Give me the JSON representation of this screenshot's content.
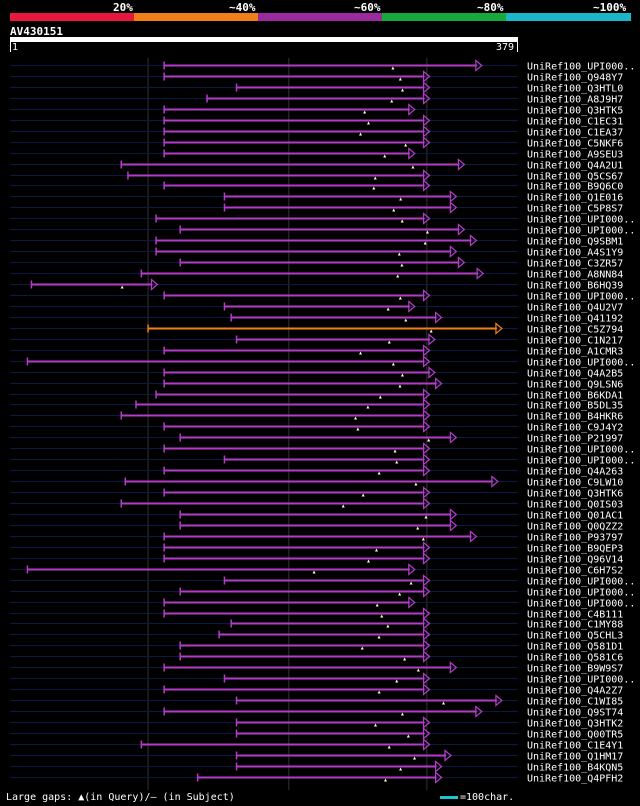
{
  "legend": {
    "labels": [
      "20%",
      "~40%",
      "~60%",
      "~80%",
      "~100%"
    ],
    "colors": [
      "#e8173c",
      "#f07f1a",
      "#9b2a9e",
      "#19a93a",
      "#1cb7c6"
    ]
  },
  "query": {
    "id": "AV430151",
    "start": "1",
    "end": "379",
    "length": 379
  },
  "colors": {
    "hit": "#b43cc8",
    "best_hit": "#f07f1a",
    "gap": "#ffffcc",
    "bg_line": "#0a1a44"
  },
  "hits": [
    {
      "label": "UniRef100_UPI000..",
      "start": 115,
      "end": 352
    },
    {
      "label": "UniRef100_Q948Y7",
      "start": 115,
      "end": 313
    },
    {
      "label": "UniRef100_Q3HTL0",
      "start": 169,
      "end": 313
    },
    {
      "label": "UniRef100_A8J9H7",
      "start": 147,
      "end": 313
    },
    {
      "label": "UniRef100_Q3HTK5",
      "start": 115,
      "end": 302
    },
    {
      "label": "UniRef100_C1EC31",
      "start": 115,
      "end": 313
    },
    {
      "label": "UniRef100_C1EA37",
      "start": 115,
      "end": 313
    },
    {
      "label": "UniRef100_C5NKF6",
      "start": 115,
      "end": 313
    },
    {
      "label": "UniRef100_A9SEU3",
      "start": 115,
      "end": 302
    },
    {
      "label": "UniRef100_Q4A2U1",
      "start": 83,
      "end": 339
    },
    {
      "label": "UniRef100_Q5CS67",
      "start": 88,
      "end": 313
    },
    {
      "label": "UniRef100_B9Q6C0",
      "start": 115,
      "end": 313
    },
    {
      "label": "UniRef100_Q1E016",
      "start": 160,
      "end": 333
    },
    {
      "label": "UniRef100_C5P8S7",
      "start": 160,
      "end": 333
    },
    {
      "label": "UniRef100_UPI000..",
      "start": 109,
      "end": 313
    },
    {
      "label": "UniRef100_UPI000..",
      "start": 127,
      "end": 339
    },
    {
      "label": "UniRef100_Q9SBM1",
      "start": 109,
      "end": 348
    },
    {
      "label": "UniRef100_A4S1Y9",
      "start": 109,
      "end": 333
    },
    {
      "label": "UniRef100_C3ZR57",
      "start": 127,
      "end": 339
    },
    {
      "label": "UniRef100_A8NN84",
      "start": 98,
      "end": 353
    },
    {
      "label": "UniRef100_B6HQ39",
      "start": 16,
      "end": 110
    },
    {
      "label": "UniRef100_UPI000..",
      "start": 115,
      "end": 313
    },
    {
      "label": "UniRef100_Q4U2V7",
      "start": 160,
      "end": 302
    },
    {
      "label": "UniRef100_Q41192",
      "start": 165,
      "end": 322
    },
    {
      "label": "UniRef100_C5Z794",
      "start": 103,
      "end": 367,
      "best": true
    },
    {
      "label": "UniRef100_C1N217",
      "start": 169,
      "end": 317
    },
    {
      "label": "UniRef100_A1CMR3",
      "start": 115,
      "end": 313
    },
    {
      "label": "UniRef100_UPI000..",
      "start": 13,
      "end": 313
    },
    {
      "label": "UniRef100_Q4A2B5",
      "start": 115,
      "end": 317
    },
    {
      "label": "UniRef100_Q9LSN6",
      "start": 115,
      "end": 322
    },
    {
      "label": "UniRef100_B6KDA1",
      "start": 109,
      "end": 313
    },
    {
      "label": "UniRef100_B5DL35",
      "start": 94,
      "end": 313
    },
    {
      "label": "UniRef100_B4HKR6",
      "start": 83,
      "end": 313
    },
    {
      "label": "UniRef100_C9J4Y2",
      "start": 115,
      "end": 313
    },
    {
      "label": "UniRef100_P21997",
      "start": 127,
      "end": 333
    },
    {
      "label": "UniRef100_UPI000..",
      "start": 115,
      "end": 313
    },
    {
      "label": "UniRef100_UPI000..",
      "start": 160,
      "end": 313
    },
    {
      "label": "UniRef100_Q4A263",
      "start": 115,
      "end": 313
    },
    {
      "label": "UniRef100_C9LW10",
      "start": 86,
      "end": 364
    },
    {
      "label": "UniRef100_Q3HTK6",
      "start": 115,
      "end": 313
    },
    {
      "label": "UniRef100_Q0IS03",
      "start": 83,
      "end": 313
    },
    {
      "label": "UniRef100_Q01AC1",
      "start": 127,
      "end": 333
    },
    {
      "label": "UniRef100_Q0QZZ2",
      "start": 127,
      "end": 333
    },
    {
      "label": "UniRef100_P93797",
      "start": 115,
      "end": 348
    },
    {
      "label": "UniRef100_B9QEP3",
      "start": 115,
      "end": 313
    },
    {
      "label": "UniRef100_Q96V14",
      "start": 115,
      "end": 313
    },
    {
      "label": "UniRef100_C6H7S2",
      "start": 13,
      "end": 302
    },
    {
      "label": "UniRef100_UPI000..",
      "start": 160,
      "end": 313
    },
    {
      "label": "UniRef100_UPI000..",
      "start": 127,
      "end": 313
    },
    {
      "label": "UniRef100_UPI000..",
      "start": 115,
      "end": 302
    },
    {
      "label": "UniRef100_C4B111",
      "start": 115,
      "end": 313
    },
    {
      "label": "UniRef100_C1MY88",
      "start": 165,
      "end": 313
    },
    {
      "label": "UniRef100_Q5CHL3",
      "start": 156,
      "end": 313
    },
    {
      "label": "UniRef100_Q581D1",
      "start": 127,
      "end": 313
    },
    {
      "label": "UniRef100_Q581C6",
      "start": 127,
      "end": 313
    },
    {
      "label": "UniRef100_B9W9S7",
      "start": 115,
      "end": 333
    },
    {
      "label": "UniRef100_UPI000..",
      "start": 160,
      "end": 313
    },
    {
      "label": "UniRef100_Q4A2Z7",
      "start": 115,
      "end": 313
    },
    {
      "label": "UniRef100_C1WI85",
      "start": 169,
      "end": 367
    },
    {
      "label": "UniRef100_Q9ST74",
      "start": 115,
      "end": 352
    },
    {
      "label": "UniRef100_Q3HTK2",
      "start": 169,
      "end": 313
    },
    {
      "label": "UniRef100_Q00TR5",
      "start": 169,
      "end": 313
    },
    {
      "label": "UniRef100_C1E4Y1",
      "start": 98,
      "end": 313
    },
    {
      "label": "UniRef100_Q1HM17",
      "start": 169,
      "end": 329
    },
    {
      "label": "UniRef100_B4KQN5",
      "start": 169,
      "end": 322
    },
    {
      "label": "UniRef100_Q4PFH2",
      "start": 140,
      "end": 322
    }
  ],
  "footer": {
    "gaps_text": "Large gaps: ▲(in Query)/– (in Subject)",
    "scale_text": "=100char."
  }
}
